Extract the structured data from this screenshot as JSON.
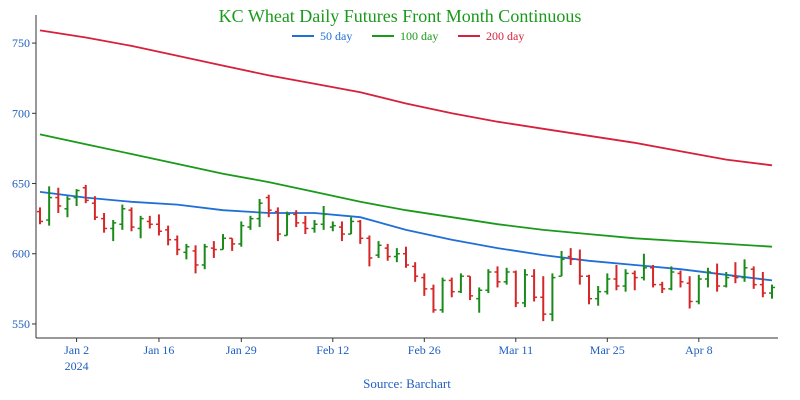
{
  "chart_data": {
    "type": "line",
    "title": "KC Wheat Daily Futures Front Month Continuous",
    "source": "Source: Barchart",
    "ylim": [
      540,
      770
    ],
    "yticks": [
      550,
      600,
      650,
      700,
      750
    ],
    "x_tick_labels": [
      {
        "label": "Jan 2",
        "sublabel": "2024",
        "index": 4
      },
      {
        "label": "Jan 16",
        "index": 13
      },
      {
        "label": "Jan 29",
        "index": 22
      },
      {
        "label": "Feb 12",
        "index": 32
      },
      {
        "label": "Feb 26",
        "index": 42
      },
      {
        "label": "Mar 11",
        "index": 52
      },
      {
        "label": "Mar 25",
        "index": 62
      },
      {
        "label": "Apr 8",
        "index": 72
      }
    ],
    "x_count": 81,
    "colors": {
      "up_bar": "#1a8a1a",
      "down_bar": "#d62728",
      "ma50": "#1f6fd6",
      "ma100": "#1a9a1a",
      "ma200": "#d6203c",
      "title": "#1a9a1a",
      "axis": "#333333"
    },
    "series": [
      {
        "name": "50 day",
        "color": "#1f6fd6",
        "points": [
          [
            0,
            644
          ],
          [
            5,
            640
          ],
          [
            10,
            637
          ],
          [
            15,
            635
          ],
          [
            20,
            631
          ],
          [
            25,
            629
          ],
          [
            30,
            629
          ],
          [
            35,
            626
          ],
          [
            40,
            617
          ],
          [
            45,
            610
          ],
          [
            50,
            604
          ],
          [
            55,
            599
          ],
          [
            60,
            595
          ],
          [
            65,
            592
          ],
          [
            70,
            589
          ],
          [
            75,
            585
          ],
          [
            80,
            581
          ]
        ]
      },
      {
        "name": "100 day",
        "color": "#1a9a1a",
        "points": [
          [
            0,
            685
          ],
          [
            5,
            678
          ],
          [
            10,
            671
          ],
          [
            15,
            664
          ],
          [
            20,
            657
          ],
          [
            25,
            651
          ],
          [
            30,
            644
          ],
          [
            35,
            637
          ],
          [
            40,
            631
          ],
          [
            45,
            626
          ],
          [
            50,
            621
          ],
          [
            55,
            617
          ],
          [
            60,
            614
          ],
          [
            65,
            611
          ],
          [
            70,
            609
          ],
          [
            75,
            607
          ],
          [
            80,
            605
          ]
        ]
      },
      {
        "name": "200 day",
        "color": "#d6203c",
        "points": [
          [
            0,
            759
          ],
          [
            5,
            754
          ],
          [
            10,
            748
          ],
          [
            15,
            741
          ],
          [
            20,
            734
          ],
          [
            25,
            727
          ],
          [
            30,
            721
          ],
          [
            35,
            715
          ],
          [
            40,
            707
          ],
          [
            45,
            700
          ],
          [
            50,
            694
          ],
          [
            55,
            689
          ],
          [
            60,
            684
          ],
          [
            65,
            679
          ],
          [
            70,
            673
          ],
          [
            75,
            667
          ],
          [
            80,
            663
          ]
        ]
      }
    ],
    "ohlc": [
      [
        630,
        633,
        621,
        623
      ],
      [
        624,
        648,
        620,
        640
      ],
      [
        640,
        647,
        629,
        634
      ],
      [
        632,
        641,
        626,
        639
      ],
      [
        640,
        646,
        634,
        645
      ],
      [
        647,
        649,
        636,
        638
      ],
      [
        636,
        641,
        624,
        626
      ],
      [
        625,
        629,
        615,
        618
      ],
      [
        618,
        624,
        609,
        622
      ],
      [
        621,
        635,
        617,
        632
      ],
      [
        631,
        633,
        616,
        619
      ],
      [
        618,
        627,
        611,
        625
      ],
      [
        623,
        627,
        618,
        621
      ],
      [
        621,
        628,
        613,
        616
      ],
      [
        617,
        620,
        606,
        610
      ],
      [
        610,
        613,
        599,
        603
      ],
      [
        601,
        607,
        596,
        605
      ],
      [
        602,
        606,
        586,
        592
      ],
      [
        592,
        607,
        589,
        605
      ],
      [
        604,
        609,
        597,
        603
      ],
      [
        603,
        614,
        603,
        611
      ],
      [
        611,
        611,
        602,
        607
      ],
      [
        607,
        623,
        605,
        620
      ],
      [
        619,
        627,
        617,
        625
      ],
      [
        625,
        639,
        619,
        636
      ],
      [
        640,
        642,
        626,
        631
      ],
      [
        630,
        633,
        609,
        614
      ],
      [
        613,
        630,
        613,
        628
      ],
      [
        628,
        631,
        619,
        622
      ],
      [
        622,
        627,
        614,
        618
      ],
      [
        618,
        624,
        615,
        621
      ],
      [
        621,
        634,
        617,
        628
      ],
      [
        619,
        623,
        616,
        620
      ],
      [
        619,
        623,
        609,
        614
      ],
      [
        614,
        626,
        614,
        623
      ],
      [
        623,
        624,
        607,
        611
      ],
      [
        611,
        613,
        591,
        597
      ],
      [
        599,
        609,
        597,
        606
      ],
      [
        604,
        607,
        595,
        598
      ],
      [
        598,
        604,
        594,
        600
      ],
      [
        600,
        605,
        590,
        592
      ],
      [
        591,
        594,
        580,
        584
      ],
      [
        583,
        586,
        570,
        575
      ],
      [
        575,
        578,
        558,
        560
      ],
      [
        560,
        583,
        558,
        581
      ],
      [
        581,
        583,
        569,
        573
      ],
      [
        573,
        586,
        572,
        584
      ],
      [
        584,
        584,
        567,
        570
      ],
      [
        568,
        576,
        558,
        574
      ],
      [
        574,
        589,
        572,
        587
      ],
      [
        587,
        591,
        576,
        580
      ],
      [
        580,
        590,
        578,
        587
      ],
      [
        587,
        588,
        562,
        565
      ],
      [
        565,
        589,
        562,
        585
      ],
      [
        584,
        589,
        566,
        569
      ],
      [
        569,
        584,
        552,
        557
      ],
      [
        557,
        586,
        552,
        583
      ],
      [
        584,
        602,
        584,
        596
      ],
      [
        598,
        604,
        592,
        596
      ],
      [
        596,
        603,
        578,
        584
      ],
      [
        584,
        585,
        564,
        568
      ],
      [
        568,
        577,
        563,
        573
      ],
      [
        573,
        586,
        571,
        582
      ],
      [
        582,
        592,
        574,
        577
      ],
      [
        577,
        589,
        573,
        586
      ],
      [
        586,
        588,
        574,
        583
      ],
      [
        583,
        600,
        581,
        590
      ],
      [
        590,
        592,
        576,
        578
      ],
      [
        578,
        580,
        572,
        575
      ],
      [
        575,
        591,
        574,
        587
      ],
      [
        586,
        588,
        576,
        580
      ],
      [
        579,
        584,
        561,
        566
      ],
      [
        566,
        585,
        564,
        582
      ],
      [
        582,
        590,
        576,
        587
      ],
      [
        586,
        593,
        573,
        577
      ],
      [
        577,
        587,
        576,
        583
      ],
      [
        584,
        594,
        579,
        583
      ],
      [
        583,
        596,
        580,
        590
      ],
      [
        589,
        591,
        575,
        578
      ],
      [
        578,
        587,
        569,
        572
      ],
      [
        572,
        578,
        568,
        576
      ]
    ]
  }
}
